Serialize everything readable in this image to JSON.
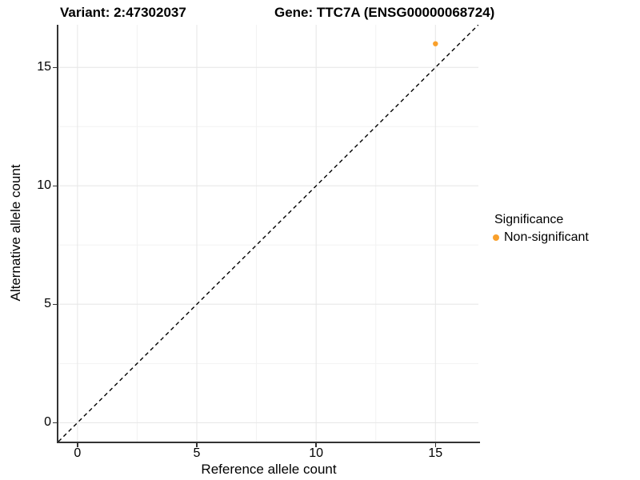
{
  "titles": {
    "variant": "Variant: 2:47302037",
    "gene": "Gene: TTC7A (ENSG00000068724)"
  },
  "chart_data": {
    "type": "scatter",
    "title_left": "Variant: 2:47302037",
    "title_right": "Gene: TTC7A (ENSG00000068724)",
    "xlabel": "Reference allele count",
    "ylabel": "Alternative allele count",
    "xlim": [
      -0.8,
      16.8
    ],
    "ylim": [
      -0.8,
      16.8
    ],
    "xticks": [
      0,
      5,
      10,
      15
    ],
    "yticks": [
      0,
      5,
      10,
      15
    ],
    "minor_xticks": [
      2.5,
      7.5,
      12.5
    ],
    "minor_yticks": [
      2.5,
      7.5,
      12.5
    ],
    "grid": true,
    "points": [
      {
        "x": 15,
        "y": 16,
        "series": "Non-significant"
      }
    ],
    "reference_line": {
      "type": "identity",
      "style": "dashed",
      "color": "#000000"
    },
    "legend": {
      "title": "Significance",
      "position": "right",
      "entries": [
        {
          "label": "Non-significant",
          "color": "#F9A02B"
        }
      ]
    }
  },
  "colors": {
    "point": "#F9A02B",
    "axis": "#333333",
    "grid_major": "#E6E6E6",
    "grid_minor": "#F2F2F2",
    "background": "#FFFFFF",
    "text": "#000000"
  }
}
